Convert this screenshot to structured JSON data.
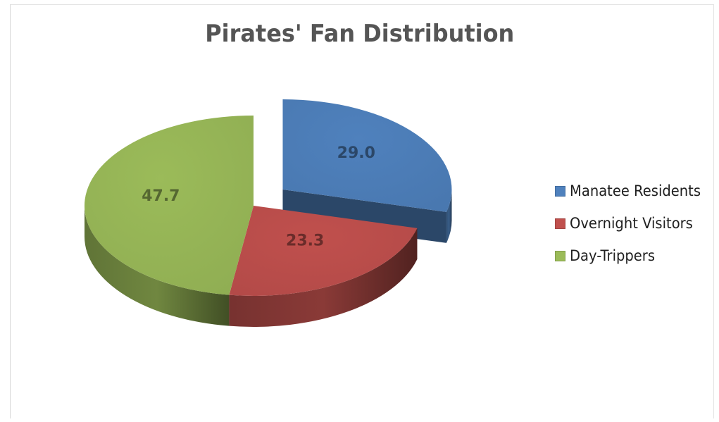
{
  "chart_data": {
    "type": "pie",
    "title": "Pirates' Fan Distribution",
    "categories": [
      "Manatee Residents",
      "Overnight Visitors",
      "Day-Trippers"
    ],
    "values": [
      29.0,
      23.3,
      47.7
    ],
    "value_labels": [
      "29.0",
      "23.3",
      "47.7"
    ],
    "colors": [
      "#4f81bd",
      "#c0504d",
      "#9bbb59"
    ],
    "legend_position": "right",
    "exploded_slice": "Manatee Residents",
    "three_d": true
  }
}
